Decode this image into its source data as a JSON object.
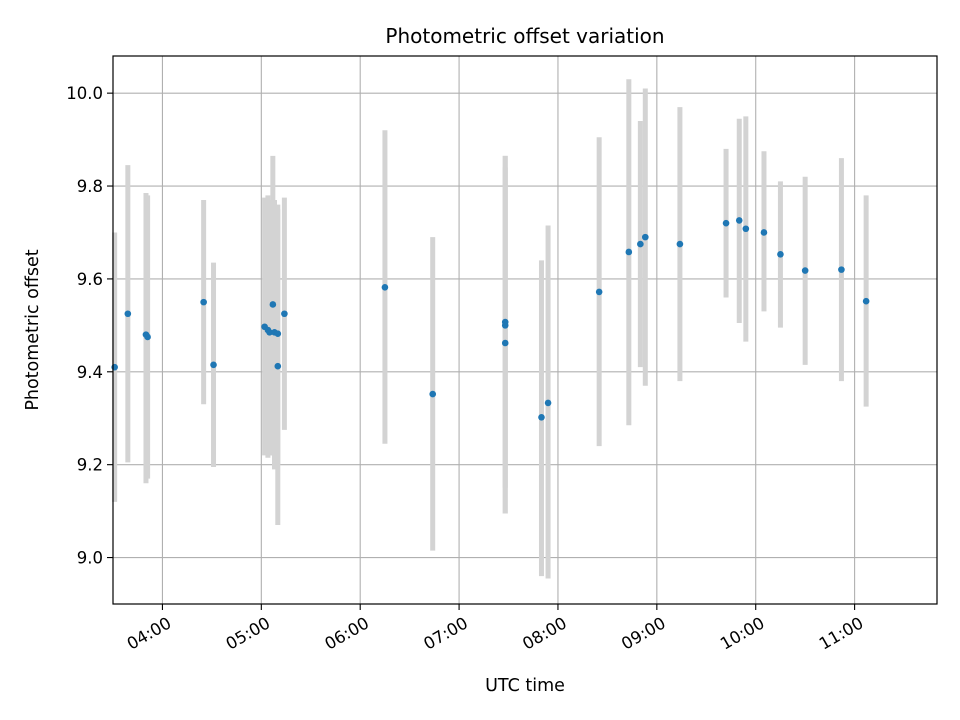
{
  "chart_data": {
    "type": "scatter",
    "title": "Photometric offset variation",
    "xlabel": "UTC time",
    "ylabel": "Photometric offset",
    "x_unit": "UTC time (HH:MM)",
    "xlim": [
      "03:30",
      "11:50"
    ],
    "ylim": [
      8.9,
      10.08
    ],
    "x_ticks": [
      "04:00",
      "05:00",
      "06:00",
      "07:00",
      "08:00",
      "09:00",
      "10:00",
      "11:00"
    ],
    "y_ticks": [
      "9.0",
      "9.2",
      "9.4",
      "9.6",
      "9.8",
      "10.0"
    ],
    "grid": true,
    "legend": "none",
    "marker_color": "#1f77b4",
    "errorbar_color": "#d3d3d3",
    "points": [
      {
        "x": "03:31",
        "y": 9.41,
        "ylo": 9.12,
        "yhi": 9.7
      },
      {
        "x": "03:39",
        "y": 9.525,
        "ylo": 9.205,
        "yhi": 9.845
      },
      {
        "x": "03:50",
        "y": 9.48,
        "ylo": 9.16,
        "yhi": 9.785
      },
      {
        "x": "03:51",
        "y": 9.475,
        "ylo": 9.17,
        "yhi": 9.78
      },
      {
        "x": "04:25",
        "y": 9.55,
        "ylo": 9.33,
        "yhi": 9.77
      },
      {
        "x": "04:31",
        "y": 9.415,
        "ylo": 9.195,
        "yhi": 9.635
      },
      {
        "x": "05:02",
        "y": 9.497,
        "ylo": 9.22,
        "yhi": 9.775
      },
      {
        "x": "05:04",
        "y": 9.49,
        "ylo": 9.215,
        "yhi": 9.78
      },
      {
        "x": "05:05",
        "y": 9.485,
        "ylo": 9.22,
        "yhi": 9.77
      },
      {
        "x": "05:07",
        "y": 9.545,
        "ylo": 9.22,
        "yhi": 9.865
      },
      {
        "x": "05:08",
        "y": 9.485,
        "ylo": 9.19,
        "yhi": 9.77
      },
      {
        "x": "05:10",
        "y": 9.482,
        "ylo": 9.2,
        "yhi": 9.76
      },
      {
        "x": "05:10",
        "y": 9.412,
        "ylo": 9.07,
        "yhi": 9.75
      },
      {
        "x": "05:14",
        "y": 9.525,
        "ylo": 9.275,
        "yhi": 9.775
      },
      {
        "x": "06:15",
        "y": 9.582,
        "ylo": 9.245,
        "yhi": 9.92
      },
      {
        "x": "06:44",
        "y": 9.352,
        "ylo": 9.015,
        "yhi": 9.69
      },
      {
        "x": "07:28",
        "y": 9.5,
        "ylo": 9.095,
        "yhi": 9.865
      },
      {
        "x": "07:28",
        "y": 9.507,
        "ylo": 9.15,
        "yhi": 9.865
      },
      {
        "x": "07:28",
        "y": 9.462,
        "ylo": 9.095,
        "yhi": 9.84
      },
      {
        "x": "07:50",
        "y": 9.302,
        "ylo": 8.96,
        "yhi": 9.64
      },
      {
        "x": "07:54",
        "y": 9.333,
        "ylo": 8.955,
        "yhi": 9.715
      },
      {
        "x": "08:25",
        "y": 9.572,
        "ylo": 9.24,
        "yhi": 9.905
      },
      {
        "x": "08:43",
        "y": 9.658,
        "ylo": 9.285,
        "yhi": 10.03
      },
      {
        "x": "08:50",
        "y": 9.675,
        "ylo": 9.41,
        "yhi": 9.94
      },
      {
        "x": "08:53",
        "y": 9.69,
        "ylo": 9.37,
        "yhi": 10.01
      },
      {
        "x": "09:14",
        "y": 9.675,
        "ylo": 9.38,
        "yhi": 9.97
      },
      {
        "x": "09:42",
        "y": 9.72,
        "ylo": 9.56,
        "yhi": 9.88
      },
      {
        "x": "09:50",
        "y": 9.726,
        "ylo": 9.505,
        "yhi": 9.945
      },
      {
        "x": "09:54",
        "y": 9.708,
        "ylo": 9.465,
        "yhi": 9.95
      },
      {
        "x": "10:05",
        "y": 9.7,
        "ylo": 9.53,
        "yhi": 9.875
      },
      {
        "x": "10:15",
        "y": 9.653,
        "ylo": 9.495,
        "yhi": 9.81
      },
      {
        "x": "10:30",
        "y": 9.618,
        "ylo": 9.415,
        "yhi": 9.82
      },
      {
        "x": "10:52",
        "y": 9.62,
        "ylo": 9.38,
        "yhi": 9.86
      },
      {
        "x": "11:07",
        "y": 9.552,
        "ylo": 9.325,
        "yhi": 9.78
      }
    ]
  }
}
